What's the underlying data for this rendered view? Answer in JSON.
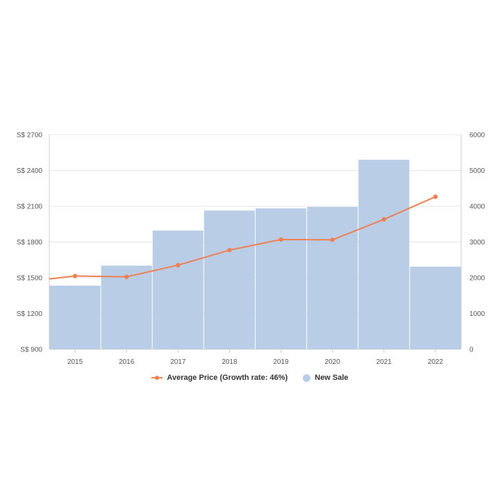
{
  "chart_data": {
    "type": "bar",
    "categories": [
      "2015",
      "2016",
      "2017",
      "2018",
      "2019",
      "2020",
      "2021",
      "2022"
    ],
    "series": [
      {
        "name": "Average Price (Growth rate: 46%)",
        "type": "line",
        "axis": "left",
        "values": [
          1515,
          1508,
          1606,
          1732,
          1821,
          1818,
          1990,
          2180
        ],
        "start_value": 1490
      },
      {
        "name": "New Sale",
        "type": "bar",
        "axis": "right",
        "values": [
          1780,
          2340,
          3320,
          3880,
          3940,
          3980,
          5300,
          2310
        ]
      }
    ],
    "y_left": {
      "ticks": [
        "S$ 900",
        "S$ 1200",
        "S$ 1500",
        "S$ 1800",
        "S$ 2100",
        "S$ 2400",
        "S$ 2700"
      ],
      "ylim": [
        900,
        2700
      ]
    },
    "y_right": {
      "ticks": [
        "0",
        "1000",
        "2000",
        "3000",
        "4000",
        "5000",
        "6000"
      ],
      "ylim": [
        0,
        6000
      ]
    },
    "grid": true,
    "legend_position": "bottom-center"
  },
  "colors": {
    "line": "#f07f52",
    "bar": "#b9cde7",
    "grid": "#e4e4e4",
    "axis": "#cccccc"
  }
}
